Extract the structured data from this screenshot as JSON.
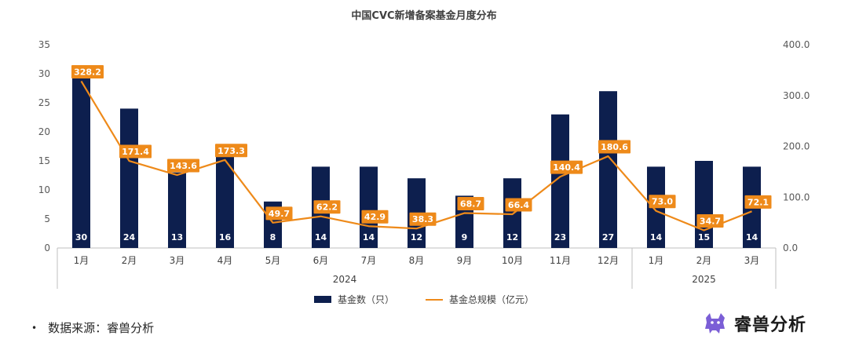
{
  "chart_data": {
    "type": "bar+line",
    "title": "中国CVC新增备案基金月度分布",
    "categories": [
      "1月",
      "2月",
      "3月",
      "4月",
      "5月",
      "6月",
      "7月",
      "8月",
      "9月",
      "10月",
      "11月",
      "12月",
      "1月",
      "2月",
      "3月"
    ],
    "groups": [
      {
        "label": "2024",
        "count": 12
      },
      {
        "label": "2025",
        "count": 3
      }
    ],
    "series": [
      {
        "name": "基金数（只）",
        "type": "bar",
        "axis": "left",
        "color": "#0d1f4e",
        "values": [
          30,
          24,
          13,
          16,
          8,
          14,
          14,
          12,
          9,
          12,
          23,
          27,
          14,
          15,
          14
        ]
      },
      {
        "name": "基金总规模（亿元）",
        "type": "line",
        "axis": "right",
        "color": "#ee8a1a",
        "values": [
          328.2,
          171.4,
          143.6,
          173.3,
          49.7,
          62.2,
          42.9,
          38.3,
          68.7,
          66.4,
          140.4,
          180.6,
          73.0,
          34.7,
          72.1
        ],
        "labels": [
          "328.2",
          "171.4",
          "143.6",
          "173.3",
          "49.7",
          "62.2",
          "42.9",
          "38.3",
          "68.7",
          "66.4",
          "140.4",
          "180.6",
          "73.0",
          "34.7",
          "72.1"
        ]
      }
    ],
    "y_left": {
      "min": 0,
      "max": 35,
      "ticks": [
        "0",
        "5",
        "10",
        "15",
        "20",
        "25",
        "30",
        "35"
      ]
    },
    "y_right": {
      "min": 0,
      "max": 400,
      "ticks": [
        "0.0",
        "100.0",
        "200.0",
        "300.0",
        "400.0"
      ]
    },
    "grid": false,
    "legend": "bottom"
  },
  "source": {
    "bullet": "•",
    "text": "数据来源：睿兽分析"
  },
  "logo": {
    "text": "睿兽分析"
  }
}
